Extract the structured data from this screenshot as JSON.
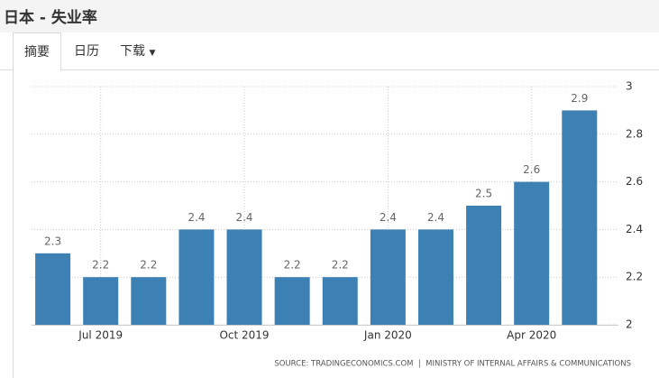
{
  "header": {
    "title": "日本 - 失业率"
  },
  "tabs": [
    "摘要",
    "日历",
    "下载"
  ],
  "chart_data": {
    "type": "bar",
    "categories": [
      null,
      "Jul 2019",
      null,
      null,
      "Oct 2019",
      null,
      null,
      "Jan 2020",
      null,
      null,
      "Apr 2020",
      null
    ],
    "values": [
      2.3,
      2.2,
      2.2,
      2.4,
      2.4,
      2.2,
      2.2,
      2.4,
      2.4,
      2.5,
      2.6,
      2.9
    ],
    "color": "#3d80b3",
    "ylim": [
      2,
      3
    ],
    "yticks": [
      2,
      2.2,
      2.4,
      2.6,
      2.8,
      3
    ],
    "grid": true,
    "source": "SOURCE: TRADINGECONOMICS.COM  |  MINISTRY OF INTERNAL AFFAIRS & COMMUNICATIONS"
  }
}
